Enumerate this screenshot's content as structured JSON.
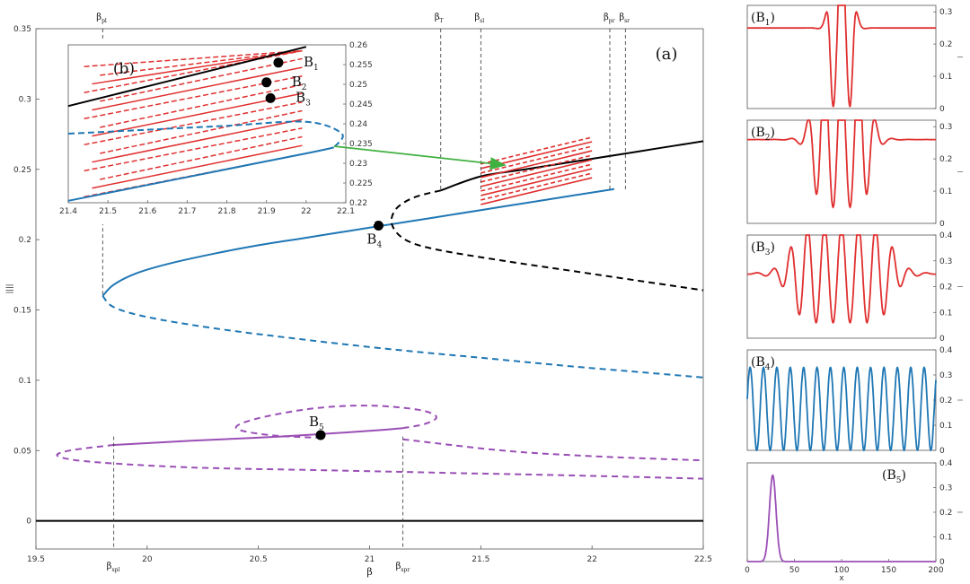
{
  "chart_data": [
    {
      "type": "line",
      "panel_label": "(a)",
      "xlabel": "β",
      "ylabel": "||||",
      "xlim": [
        19.5,
        22.5
      ],
      "ylim": [
        -0.02,
        0.35
      ],
      "xticks": [
        "19.5",
        "20",
        "20.5",
        "21",
        "21.5",
        "22",
        "22.5"
      ],
      "yticks": [
        "0",
        "0.05",
        "0.1",
        "0.15",
        "0.2",
        "0.25",
        "0.3",
        "0.35"
      ],
      "vlines_top": [
        {
          "label": "β",
          "sub": "pl",
          "x": 19.8
        },
        {
          "label": "β",
          "sub": "T",
          "x": 21.32
        },
        {
          "label": "β",
          "sub": "sl",
          "x": 21.5
        },
        {
          "label": "β",
          "sub": "pr",
          "x": 22.08
        },
        {
          "label": "β",
          "sub": "sr",
          "x": 22.15
        }
      ],
      "vlines_bottom": [
        {
          "label": "β",
          "sub": "spl",
          "x": 19.85
        },
        {
          "label": "β",
          "sub": "spr",
          "x": 21.15
        }
      ],
      "points": [
        {
          "label": "B",
          "sub": "4",
          "x": 21.04,
          "y": 0.21
        },
        {
          "label": "B",
          "sub": "5",
          "x": 20.78,
          "y": 0.061
        }
      ],
      "series": [
        {
          "color": "#000000",
          "style": "solid",
          "x": [
            19.5,
            22.5
          ],
          "y": [
            0,
            0
          ]
        },
        {
          "color": "#1f77b4",
          "style": "solid",
          "x": [
            19.8,
            19.85,
            19.95,
            20.1,
            20.3,
            20.5,
            20.7,
            20.9,
            21.1,
            21.3,
            21.5,
            21.7,
            21.9,
            22.1
          ],
          "y": [
            0.16,
            0.168,
            0.176,
            0.183,
            0.19,
            0.196,
            0.201,
            0.206,
            0.211,
            0.216,
            0.221,
            0.226,
            0.231,
            0.236
          ]
        },
        {
          "color": "#1f77b4",
          "style": "dashed",
          "x": [
            19.8,
            19.85,
            20.0,
            20.3,
            20.7,
            21.1,
            21.5,
            21.9,
            22.2,
            22.5
          ],
          "y": [
            0.16,
            0.152,
            0.145,
            0.137,
            0.129,
            0.122,
            0.116,
            0.11,
            0.106,
            0.102
          ]
        },
        {
          "color": "#000000",
          "style": "solid",
          "x": [
            21.32,
            21.5,
            21.7,
            21.9,
            22.1,
            22.3,
            22.5
          ],
          "y": [
            0.235,
            0.245,
            0.25,
            0.255,
            0.26,
            0.265,
            0.27
          ]
        },
        {
          "color": "#000000",
          "style": "dashed",
          "x": [
            21.32,
            21.2,
            21.12,
            21.1,
            21.16,
            21.3,
            21.6,
            21.9,
            22.2,
            22.5
          ],
          "y": [
            0.235,
            0.23,
            0.222,
            0.211,
            0.2,
            0.193,
            0.185,
            0.178,
            0.171,
            0.164
          ]
        },
        {
          "color": "#9a4fb5",
          "style": "solid",
          "x": [
            19.85,
            20.2,
            20.6,
            21.0,
            21.15
          ],
          "y": [
            0.054,
            0.057,
            0.06,
            0.064,
            0.066
          ]
        },
        {
          "color": "#9a4fb5",
          "style": "dashed",
          "x": [
            21.15,
            21.25,
            21.3,
            21.22,
            21.0,
            20.75,
            20.5,
            20.4,
            20.55,
            20.8
          ],
          "y": [
            0.066,
            0.069,
            0.074,
            0.079,
            0.082,
            0.08,
            0.073,
            0.066,
            0.061,
            0.059
          ]
        },
        {
          "color": "#9a4fb5",
          "style": "dashed",
          "x": [
            19.85,
            19.65,
            19.6,
            19.75,
            20.2,
            20.8,
            21.4,
            22.0,
            22.5
          ],
          "y": [
            0.054,
            0.05,
            0.046,
            0.042,
            0.038,
            0.036,
            0.034,
            0.032,
            0.03
          ]
        },
        {
          "color": "#9a4fb5",
          "style": "dashed",
          "x": [
            21.15,
            21.6,
            22.0,
            22.5
          ],
          "y": [
            0.058,
            0.05,
            0.046,
            0.043
          ]
        }
      ]
    },
    {
      "type": "line",
      "panel_label": "(b)",
      "xlim": [
        21.4,
        22.1
      ],
      "ylim": [
        0.22,
        0.26
      ],
      "xticks": [
        "21.4",
        "21.5",
        "21.6",
        "21.7",
        "21.8",
        "21.9",
        "22",
        "22.1"
      ],
      "yticks": [
        "0.22",
        "0.225",
        "0.23",
        "0.235",
        "0.24",
        "0.245",
        "0.25",
        "0.255",
        "0.26"
      ],
      "points": [
        {
          "label": "B",
          "sub": "1",
          "x": 21.93,
          "y": 0.2555
        },
        {
          "label": "B",
          "sub": "2",
          "x": 21.9,
          "y": 0.2505
        },
        {
          "label": "B",
          "sub": "3",
          "x": 21.91,
          "y": 0.2465
        }
      ],
      "series": [
        {
          "color": "#000000",
          "style": "solid",
          "x": [
            21.4,
            21.6,
            21.8,
            22.0
          ],
          "y": [
            0.2445,
            0.2495,
            0.2545,
            0.2595
          ]
        },
        {
          "color": "#1f77b4",
          "style": "solid",
          "x": [
            21.4,
            21.6,
            21.8,
            22.0,
            22.07
          ],
          "y": [
            0.2205,
            0.2245,
            0.2285,
            0.2325,
            0.234
          ]
        },
        {
          "color": "#1f77b4",
          "style": "dashed",
          "x": [
            21.4,
            21.6,
            21.8,
            22.0,
            22.09,
            22.07
          ],
          "y": [
            0.2375,
            0.2385,
            0.2395,
            0.2405,
            0.2375,
            0.234
          ]
        }
      ]
    },
    {
      "type": "line",
      "panel_label": "(B1)",
      "xlim": [
        0,
        200
      ],
      "ylim": [
        0,
        0.32
      ],
      "yticks": [
        "0",
        "0.1",
        "0.2",
        "0.3"
      ],
      "color": "#e03030",
      "profile": {
        "base": 0.25,
        "amp": 0.25,
        "center": 100,
        "width": 14,
        "period": 18
      }
    },
    {
      "type": "line",
      "panel_label": "(B2)",
      "xlim": [
        0,
        200
      ],
      "ylim": [
        0,
        0.32
      ],
      "yticks": [
        "0",
        "0.1",
        "0.2",
        "0.3"
      ],
      "color": "#e03030",
      "profile": {
        "base": 0.26,
        "amp": 0.21,
        "center": 100,
        "width": 32,
        "period": 18
      }
    },
    {
      "type": "line",
      "panel_label": "(B3)",
      "xlim": [
        0,
        200
      ],
      "ylim": [
        0,
        0.4
      ],
      "yticks": [
        "0",
        "0.1",
        "0.2",
        "0.3",
        "0.4"
      ],
      "color": "#e03030",
      "profile": {
        "base": 0.25,
        "amp": 0.19,
        "center": 100,
        "width": 55,
        "period": 18
      }
    },
    {
      "type": "line",
      "panel_label": "(B4)",
      "xlim": [
        0,
        200
      ],
      "ylim": [
        0,
        0.4
      ],
      "yticks": [
        "0",
        "0.1",
        "0.2",
        "0.3",
        "0.4"
      ],
      "color": "#1f77b4",
      "profile": {
        "base": 0.165,
        "amp": 0.165,
        "center": 100,
        "width": 9999,
        "period": 14.2
      }
    },
    {
      "type": "line",
      "panel_label": "(B5)",
      "xlim": [
        0,
        200
      ],
      "ylim": [
        0,
        0.4
      ],
      "xticks": [
        "0",
        "50",
        "100",
        "150",
        "200"
      ],
      "yticks": [
        "0",
        "0.1",
        "0.2",
        "0.3",
        "0.4"
      ],
      "xlabel": "x",
      "color": "#9a4fb5",
      "peak": {
        "center": 27,
        "sigma": 3.5,
        "height": 0.35
      }
    }
  ]
}
